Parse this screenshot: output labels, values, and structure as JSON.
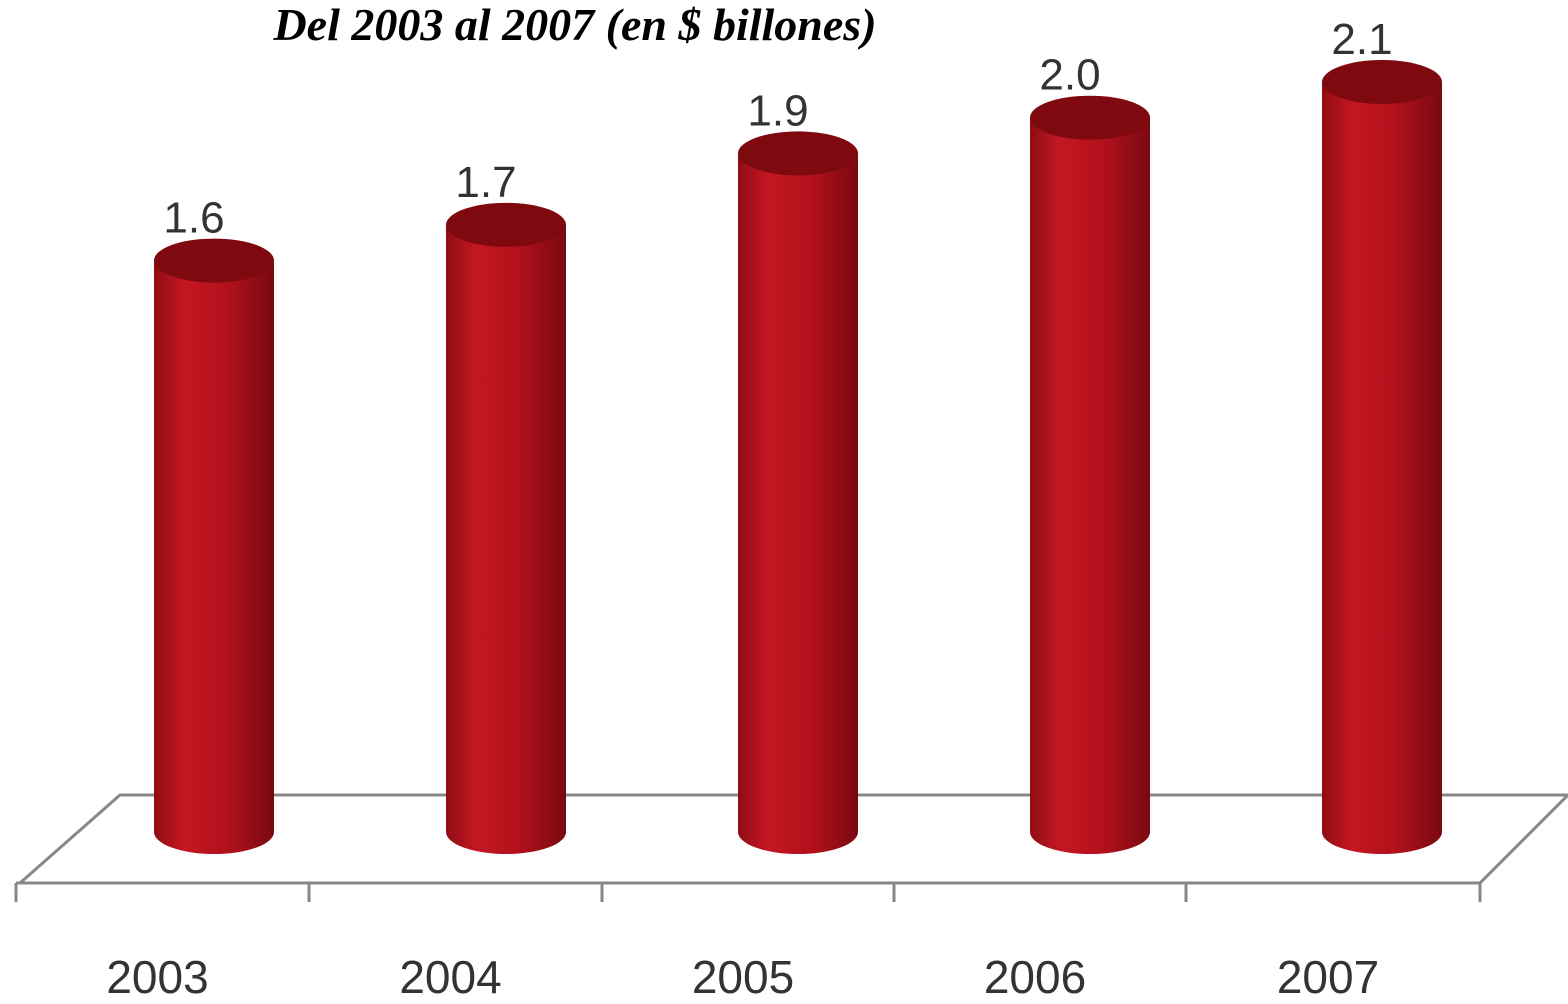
{
  "chart_data": {
    "type": "bar",
    "title": "Del 2003 al 2007 (en $ billones)",
    "categories": [
      "2003",
      "2004",
      "2005",
      "2006",
      "2007"
    ],
    "values": [
      1.6,
      1.7,
      1.9,
      2.0,
      2.1
    ],
    "value_labels": [
      "1.6",
      "1.7",
      "1.9",
      "2.0",
      "2.1"
    ],
    "bar_shape": "3d-cylinder",
    "bar_color": "#b3111c",
    "bar_top_color": "#7e0a10",
    "grid": false,
    "ylim": [
      0,
      2.1
    ]
  }
}
